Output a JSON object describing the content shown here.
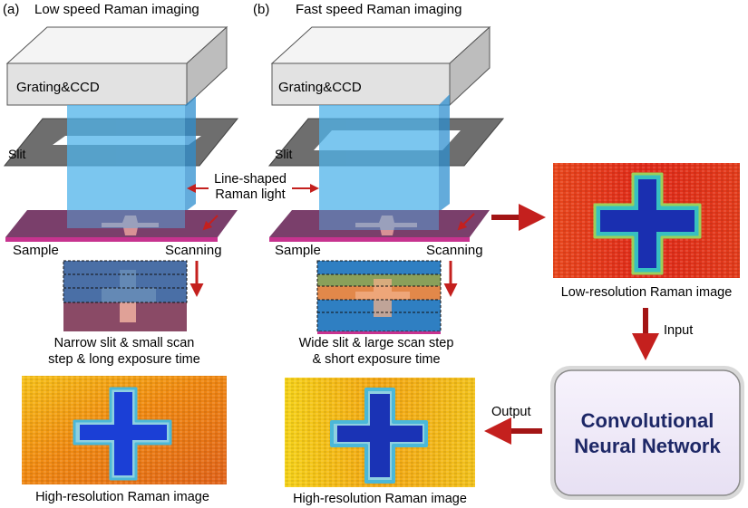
{
  "panel_a": {
    "tag": "(a)",
    "title": "Low speed Raman imaging",
    "ccd_label": "Grating&CCD",
    "slit_label": "Slit",
    "sample_label": "Sample",
    "scanning_label": "Scanning",
    "caption_line1": "Narrow slit & small scan",
    "caption_line2": "step & long exposure time",
    "result_label": "High-resolution Raman image"
  },
  "panel_b": {
    "tag": "(b)",
    "title": "Fast speed Raman imaging",
    "ccd_label": "Grating&CCD",
    "slit_label": "Slit",
    "sample_label": "Sample",
    "scanning_label": "Scanning",
    "caption_line1": "Wide slit & large scan step",
    "caption_line2": "& short exposure time",
    "result_label": "High-resolution Raman image"
  },
  "shared": {
    "light_label_line1": "Line-shaped",
    "light_label_line2": "Raman light"
  },
  "network": {
    "low_res_label": "Low-resolution Raman image",
    "input_label": "Input",
    "output_label": "Output",
    "cnn_line1": "Convolutional",
    "cnn_line2": "Neural Network"
  },
  "colors": {
    "arrow": "#a31515",
    "cnn_text": "#1d2766",
    "light_blue": "#4fb3ea",
    "sample": "#7a3f6b"
  }
}
